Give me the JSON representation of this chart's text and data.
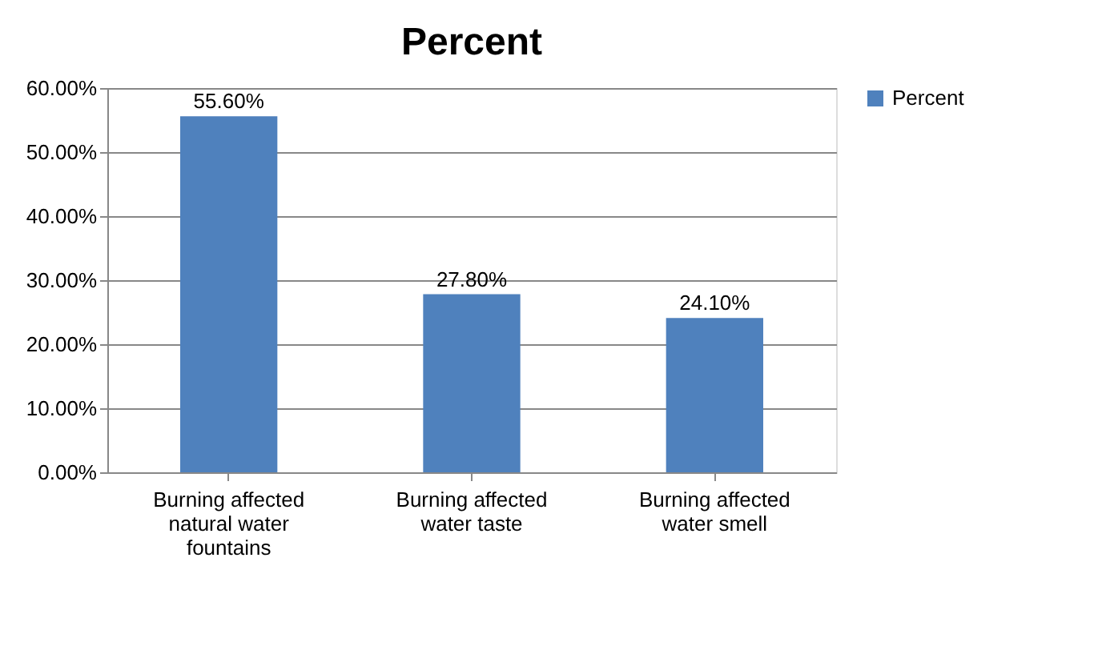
{
  "chart_data": {
    "type": "bar",
    "title": "Percent",
    "categories": [
      "Burning affected natural water fountains",
      "Burning affected water taste",
      "Burning affected water smell"
    ],
    "series": [
      {
        "name": "Percent",
        "color": "#4f81bd",
        "values": [
          55.6,
          27.8,
          24.1
        ],
        "value_labels": [
          "55.60%",
          "27.80%",
          "24.10%"
        ]
      }
    ],
    "ylim": [
      0,
      60
    ],
    "yticks": [
      {
        "value": 0,
        "label": "0.00%"
      },
      {
        "value": 10,
        "label": "10.00%"
      },
      {
        "value": 20,
        "label": "20.00%"
      },
      {
        "value": 30,
        "label": "30.00%"
      },
      {
        "value": 40,
        "label": "40.00%"
      },
      {
        "value": 50,
        "label": "50.00%"
      },
      {
        "value": 60,
        "label": "60.00%"
      }
    ],
    "grid": "y",
    "legend": "right"
  }
}
